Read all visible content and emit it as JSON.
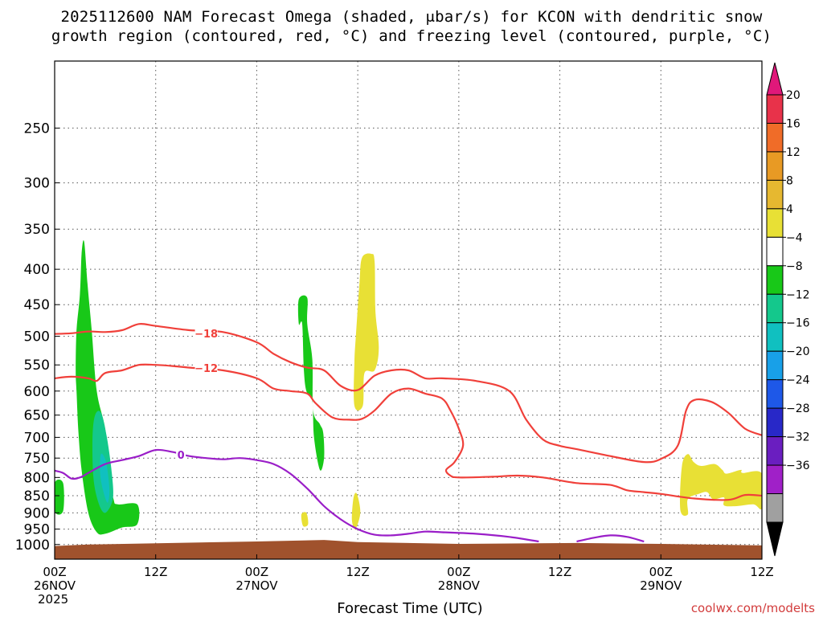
{
  "title": {
    "line1": "2025112600 NAM Forecast Omega (shaded, μbar/s) for KCON with dendritic snow",
    "line2": "growth region (contoured, red, °C) and freezing level (contoured, purple, °C)"
  },
  "xlabel": "Forecast Time (UTC)",
  "credit": "coolwx.com/modelts",
  "chart_data": {
    "type": "time-height cross section",
    "y_axis": {
      "quantity": "pressure",
      "scale": "log",
      "inverted": true,
      "range": [
        1050,
        200
      ],
      "ticks": [
        250,
        300,
        350,
        400,
        450,
        500,
        550,
        600,
        650,
        700,
        750,
        800,
        850,
        900,
        950,
        1000
      ]
    },
    "x_axis": {
      "quantity": "forecast hour",
      "range": [
        0,
        84
      ],
      "ticks": [
        {
          "hour": 0,
          "l1": "00Z",
          "l2": "26NOV",
          "l3": "2025"
        },
        {
          "hour": 12,
          "l1": "12Z",
          "l2": "",
          "l3": ""
        },
        {
          "hour": 24,
          "l1": "00Z",
          "l2": "27NOV",
          "l3": ""
        },
        {
          "hour": 36,
          "l1": "12Z",
          "l2": "",
          "l3": ""
        },
        {
          "hour": 48,
          "l1": "00Z",
          "l2": "28NOV",
          "l3": ""
        },
        {
          "hour": 60,
          "l1": "12Z",
          "l2": "",
          "l3": ""
        },
        {
          "hour": 72,
          "l1": "00Z",
          "l2": "29NOV",
          "l3": ""
        },
        {
          "hour": 84,
          "l1": "12Z",
          "l2": "",
          "l3": ""
        }
      ]
    },
    "grid": true,
    "colorbar": {
      "placement": "right",
      "labels": [
        "20",
        "16",
        "12",
        "8",
        "4",
        "−4",
        "−8",
        "−12",
        "−16",
        "−20",
        "−24",
        "−28",
        "−32",
        "−36"
      ],
      "colors": [
        "#e8324a",
        "#f06c28",
        "#e89a24",
        "#e6b830",
        "#e8e035",
        "#ffffff",
        "#18c818",
        "#14c88c",
        "#10c0c0",
        "#18a0e8",
        "#1e58e8",
        "#2828c8",
        "#6a1ec0",
        "#a020c8",
        "#a0a0a0"
      ],
      "top_arrow_color": "#e0187a",
      "bottom_arrow_color": "#000000"
    },
    "terrain": {
      "color": "#a0522d",
      "points": [
        [
          0,
          1005
        ],
        [
          4,
          1000
        ],
        [
          24,
          990
        ],
        [
          32,
          985
        ],
        [
          36,
          992
        ],
        [
          48,
          998
        ],
        [
          62,
          995
        ],
        [
          72,
          998
        ],
        [
          84,
          1003
        ]
      ]
    },
    "shaded_regions": [
      {
        "value_class": "−4",
        "color": "#18c818",
        "points": [
          [
            2.5,
            560
          ],
          [
            2.6,
            490
          ],
          [
            3.0,
            435
          ],
          [
            3.2,
            380
          ],
          [
            3.5,
            365
          ],
          [
            3.9,
            420
          ],
          [
            4.4,
            490
          ],
          [
            5.0,
            600
          ],
          [
            6.0,
            680
          ],
          [
            6.5,
            780
          ],
          [
            7.0,
            860
          ],
          [
            7.5,
            875
          ],
          [
            9.8,
            875
          ],
          [
            9.8,
            935
          ],
          [
            8.0,
            945
          ],
          [
            6.0,
            965
          ],
          [
            5.0,
            960
          ],
          [
            4.0,
            900
          ],
          [
            3.2,
            780
          ],
          [
            2.8,
            680
          ],
          [
            2.6,
            600
          ]
        ]
      },
      {
        "value_class": "−4",
        "color": "#18c818",
        "points": [
          [
            0.0,
            815
          ],
          [
            1.0,
            815
          ],
          [
            1.0,
            895
          ],
          [
            0.0,
            895
          ]
        ]
      },
      {
        "value_class": "−4",
        "color": "#18c818",
        "points": [
          [
            29.0,
            442
          ],
          [
            30.0,
            440
          ],
          [
            30.0,
            480
          ],
          [
            30.6,
            540
          ],
          [
            30.7,
            640
          ],
          [
            31.5,
            670
          ],
          [
            31.9,
            690
          ],
          [
            32.0,
            750
          ],
          [
            31.5,
            780
          ],
          [
            30.8,
            700
          ],
          [
            30.6,
            620
          ],
          [
            29.9,
            600
          ],
          [
            29.6,
            560
          ],
          [
            29.4,
            480
          ],
          [
            29.0,
            480
          ]
        ]
      },
      {
        "value_class": "−8",
        "color": "#14c88c",
        "points": [
          [
            4.5,
            700
          ],
          [
            4.8,
            650
          ],
          [
            5.5,
            645
          ],
          [
            6.2,
            700
          ],
          [
            6.8,
            790
          ],
          [
            6.9,
            860
          ],
          [
            6.0,
            900
          ],
          [
            5.2,
            870
          ],
          [
            4.6,
            800
          ]
        ]
      },
      {
        "value_class": "−12",
        "color": "#10c0c0",
        "points": [
          [
            5.5,
            740
          ],
          [
            6.1,
            760
          ],
          [
            6.5,
            830
          ],
          [
            6.3,
            870
          ],
          [
            5.8,
            840
          ],
          [
            5.4,
            790
          ]
        ]
      },
      {
        "value_class": "4",
        "color": "#e8e035",
        "points": [
          [
            36.2,
            420
          ],
          [
            36.5,
            385
          ],
          [
            37.6,
            380
          ],
          [
            38.0,
            390
          ],
          [
            38.1,
            460
          ],
          [
            38.5,
            520
          ],
          [
            38.0,
            560
          ],
          [
            36.8,
            565
          ],
          [
            36.6,
            630
          ],
          [
            35.6,
            630
          ],
          [
            35.6,
            545
          ],
          [
            35.8,
            495
          ]
        ]
      },
      {
        "value_class": "4",
        "color": "#e8e035",
        "points": [
          [
            29.3,
            905
          ],
          [
            29.9,
            900
          ],
          [
            30.1,
            935
          ],
          [
            29.5,
            940
          ]
        ]
      },
      {
        "value_class": "4",
        "color": "#e8e035",
        "points": [
          [
            35.5,
            855
          ],
          [
            35.9,
            845
          ],
          [
            36.3,
            900
          ],
          [
            35.7,
            950
          ],
          [
            35.3,
            920
          ]
        ]
      },
      {
        "value_class": "4",
        "color": "#e8e035",
        "points": [
          [
            74.5,
            770
          ],
          [
            75.2,
            740
          ],
          [
            75.9,
            760
          ],
          [
            76.8,
            770
          ],
          [
            78.4,
            765
          ],
          [
            79.3,
            780
          ],
          [
            79.8,
            790
          ],
          [
            81.5,
            780
          ],
          [
            81.7,
            788
          ],
          [
            84.0,
            790
          ],
          [
            84.0,
            885
          ],
          [
            83.0,
            875
          ],
          [
            81.0,
            880
          ],
          [
            79.5,
            878
          ],
          [
            79.5,
            855
          ],
          [
            78.2,
            860
          ],
          [
            77.5,
            840
          ],
          [
            76.5,
            845
          ],
          [
            75.2,
            860
          ],
          [
            75.2,
            905
          ],
          [
            74.3,
            890
          ]
        ]
      }
    ],
    "contours": [
      {
        "name": "−18",
        "color": "#f0403a",
        "label": "−18",
        "label_at": [
          18.0,
          496
        ],
        "points": [
          [
            0.0,
            496
          ],
          [
            2.0,
            495
          ],
          [
            4.0,
            492
          ],
          [
            6.0,
            493
          ],
          [
            8.0,
            490
          ],
          [
            10.0,
            480
          ],
          [
            12.0,
            483
          ],
          [
            16.0,
            490
          ],
          [
            20.0,
            493
          ],
          [
            24.0,
            510
          ],
          [
            26.0,
            530
          ],
          [
            28.0,
            545
          ],
          [
            30.0,
            555
          ],
          [
            32.0,
            560
          ],
          [
            34.0,
            590
          ],
          [
            36.0,
            598
          ],
          [
            38.0,
            570
          ],
          [
            40.0,
            560
          ],
          [
            42.0,
            560
          ],
          [
            44.0,
            575
          ],
          [
            46.0,
            575
          ],
          [
            50.0,
            580
          ],
          [
            54.0,
            600
          ],
          [
            56.0,
            660
          ],
          [
            58.0,
            705
          ],
          [
            60.0,
            720
          ],
          [
            62.0,
            728
          ],
          [
            66.0,
            745
          ],
          [
            70.0,
            760
          ],
          [
            72.0,
            752
          ],
          [
            74.0,
            720
          ],
          [
            75.0,
            640
          ],
          [
            76.0,
            618
          ],
          [
            78.0,
            622
          ],
          [
            80.0,
            645
          ],
          [
            82.0,
            680
          ],
          [
            84.0,
            695
          ]
        ]
      },
      {
        "name": "−12",
        "color": "#f0403a",
        "label": "−12",
        "label_at": [
          18.0,
          556
        ],
        "points": [
          [
            0.0,
            575
          ],
          [
            2.0,
            572
          ],
          [
            4.0,
            575
          ],
          [
            5.0,
            580
          ],
          [
            6.0,
            565
          ],
          [
            8.0,
            560
          ],
          [
            10.0,
            550
          ],
          [
            12.0,
            550
          ],
          [
            14.0,
            552
          ],
          [
            16.0,
            555
          ],
          [
            20.0,
            560
          ],
          [
            24.0,
            575
          ],
          [
            26.0,
            595
          ],
          [
            28.0,
            600
          ],
          [
            30.0,
            605
          ],
          [
            31.0,
            625
          ],
          [
            33.0,
            655
          ],
          [
            35.0,
            660
          ],
          [
            36.5,
            658
          ],
          [
            38.0,
            640
          ],
          [
            40.0,
            605
          ],
          [
            42.0,
            595
          ],
          [
            44.0,
            605
          ],
          [
            46.0,
            615
          ],
          [
            47.0,
            640
          ],
          [
            48.0,
            680
          ],
          [
            48.5,
            720
          ],
          [
            47.5,
            760
          ],
          [
            46.5,
            780
          ],
          [
            47.0,
            795
          ],
          [
            48.0,
            800
          ],
          [
            52.0,
            798
          ],
          [
            55.0,
            795
          ],
          [
            58.0,
            800
          ],
          [
            62.0,
            815
          ],
          [
            66.0,
            820
          ],
          [
            68.0,
            835
          ],
          [
            70.0,
            840
          ],
          [
            72.0,
            845
          ],
          [
            76.0,
            858
          ],
          [
            80.0,
            862
          ],
          [
            82.0,
            848
          ],
          [
            84.0,
            850
          ]
        ]
      },
      {
        "name": "0",
        "color": "#9a1ec8",
        "label": "0",
        "label_at": [
          15.0,
          743
        ],
        "points": [
          [
            0.0,
            782
          ],
          [
            1.0,
            788
          ],
          [
            2.0,
            803
          ],
          [
            3.0,
            800
          ],
          [
            4.0,
            788
          ],
          [
            6.0,
            765
          ],
          [
            8.0,
            755
          ],
          [
            10.0,
            745
          ],
          [
            12.0,
            730
          ],
          [
            14.0,
            735
          ],
          [
            16.0,
            745
          ],
          [
            18.0,
            750
          ],
          [
            20.0,
            753
          ],
          [
            22.0,
            750
          ],
          [
            24.0,
            755
          ],
          [
            26.0,
            765
          ],
          [
            28.0,
            790
          ],
          [
            30.0,
            830
          ],
          [
            32.0,
            880
          ],
          [
            34.0,
            920
          ],
          [
            36.0,
            950
          ],
          [
            38.0,
            968
          ],
          [
            40.0,
            970
          ],
          [
            42.0,
            965
          ],
          [
            44.0,
            958
          ],
          [
            46.0,
            960
          ],
          [
            50.0,
            965
          ],
          [
            54.0,
            975
          ],
          [
            57.5,
            990
          ]
        ]
      },
      {
        "name": "0",
        "color": "#9a1ec8",
        "label": "",
        "label_at": null,
        "points": [
          [
            62.0,
            990
          ],
          [
            64.0,
            978
          ],
          [
            66.0,
            970
          ],
          [
            68.0,
            975
          ],
          [
            70.0,
            990
          ]
        ]
      }
    ]
  }
}
